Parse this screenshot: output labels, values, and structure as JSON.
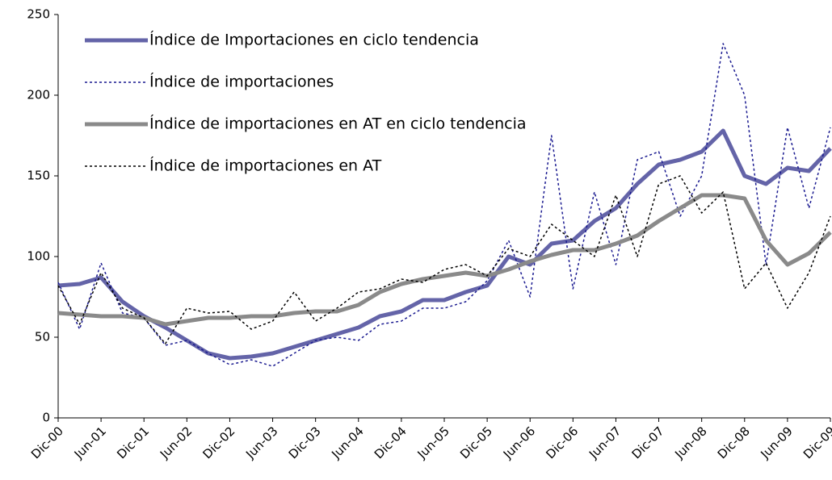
{
  "chart_data": {
    "type": "line",
    "categories": [
      "Dic-00",
      null,
      "Jun-01",
      null,
      "Dic-01",
      null,
      "Jun-02",
      null,
      "Dic-02",
      null,
      "Jun-03",
      null,
      "Dic-03",
      null,
      "Jun-04",
      null,
      "Dic-04",
      null,
      "Jun-05",
      null,
      "Dic-05",
      null,
      "Jun-06",
      null,
      "Dic-06",
      null,
      "Jun-07",
      null,
      "Dic-07",
      null,
      "Jun-08",
      null,
      "Dic-08",
      null,
      "Jun-09",
      null,
      "Dic-09"
    ],
    "series": [
      {
        "name": "Índice de Importaciones en ciclo tendencia",
        "color": "#6464a8",
        "style": "solid",
        "values": [
          82,
          83,
          87,
          72,
          63,
          56,
          48,
          40,
          37,
          38,
          40,
          44,
          48,
          52,
          56,
          63,
          66,
          73,
          73,
          78,
          82,
          100,
          95,
          108,
          110,
          122,
          130,
          145,
          157,
          160,
          165,
          178,
          150,
          145,
          155,
          153,
          167
        ]
      },
      {
        "name": "Índice de importaciones",
        "color": "#1a1a90",
        "style": "dotted",
        "values": [
          84,
          55,
          96,
          65,
          62,
          45,
          48,
          40,
          33,
          36,
          32,
          40,
          48,
          50,
          48,
          58,
          60,
          68,
          68,
          72,
          85,
          110,
          75,
          175,
          80,
          140,
          95,
          160,
          165,
          125,
          150,
          232,
          200,
          95,
          180,
          130,
          180
        ]
      },
      {
        "name": "Índice de importaciones en AT en ciclo tendencia",
        "color": "#8a8a8a",
        "style": "solid",
        "values": [
          65,
          64,
          63,
          63,
          62,
          58,
          60,
          62,
          62,
          63,
          63,
          65,
          66,
          66,
          70,
          78,
          83,
          86,
          88,
          90,
          88,
          92,
          97,
          101,
          104,
          104,
          108,
          113,
          122,
          130,
          138,
          138,
          136,
          110,
          95,
          102,
          115
        ]
      },
      {
        "name": "Índice de importaciones en AT",
        "color": "#000000",
        "style": "dotted",
        "values": [
          82,
          58,
          90,
          68,
          62,
          46,
          68,
          65,
          66,
          55,
          60,
          78,
          60,
          68,
          78,
          80,
          86,
          84,
          92,
          95,
          88,
          105,
          100,
          120,
          110,
          100,
          138,
          100,
          145,
          150,
          127,
          140,
          80,
          96,
          68,
          90,
          125
        ]
      }
    ],
    "ylim": [
      0,
      250
    ],
    "yticks": [
      0,
      50,
      100,
      150,
      200,
      250
    ],
    "grid": false,
    "legend": "upper left"
  }
}
